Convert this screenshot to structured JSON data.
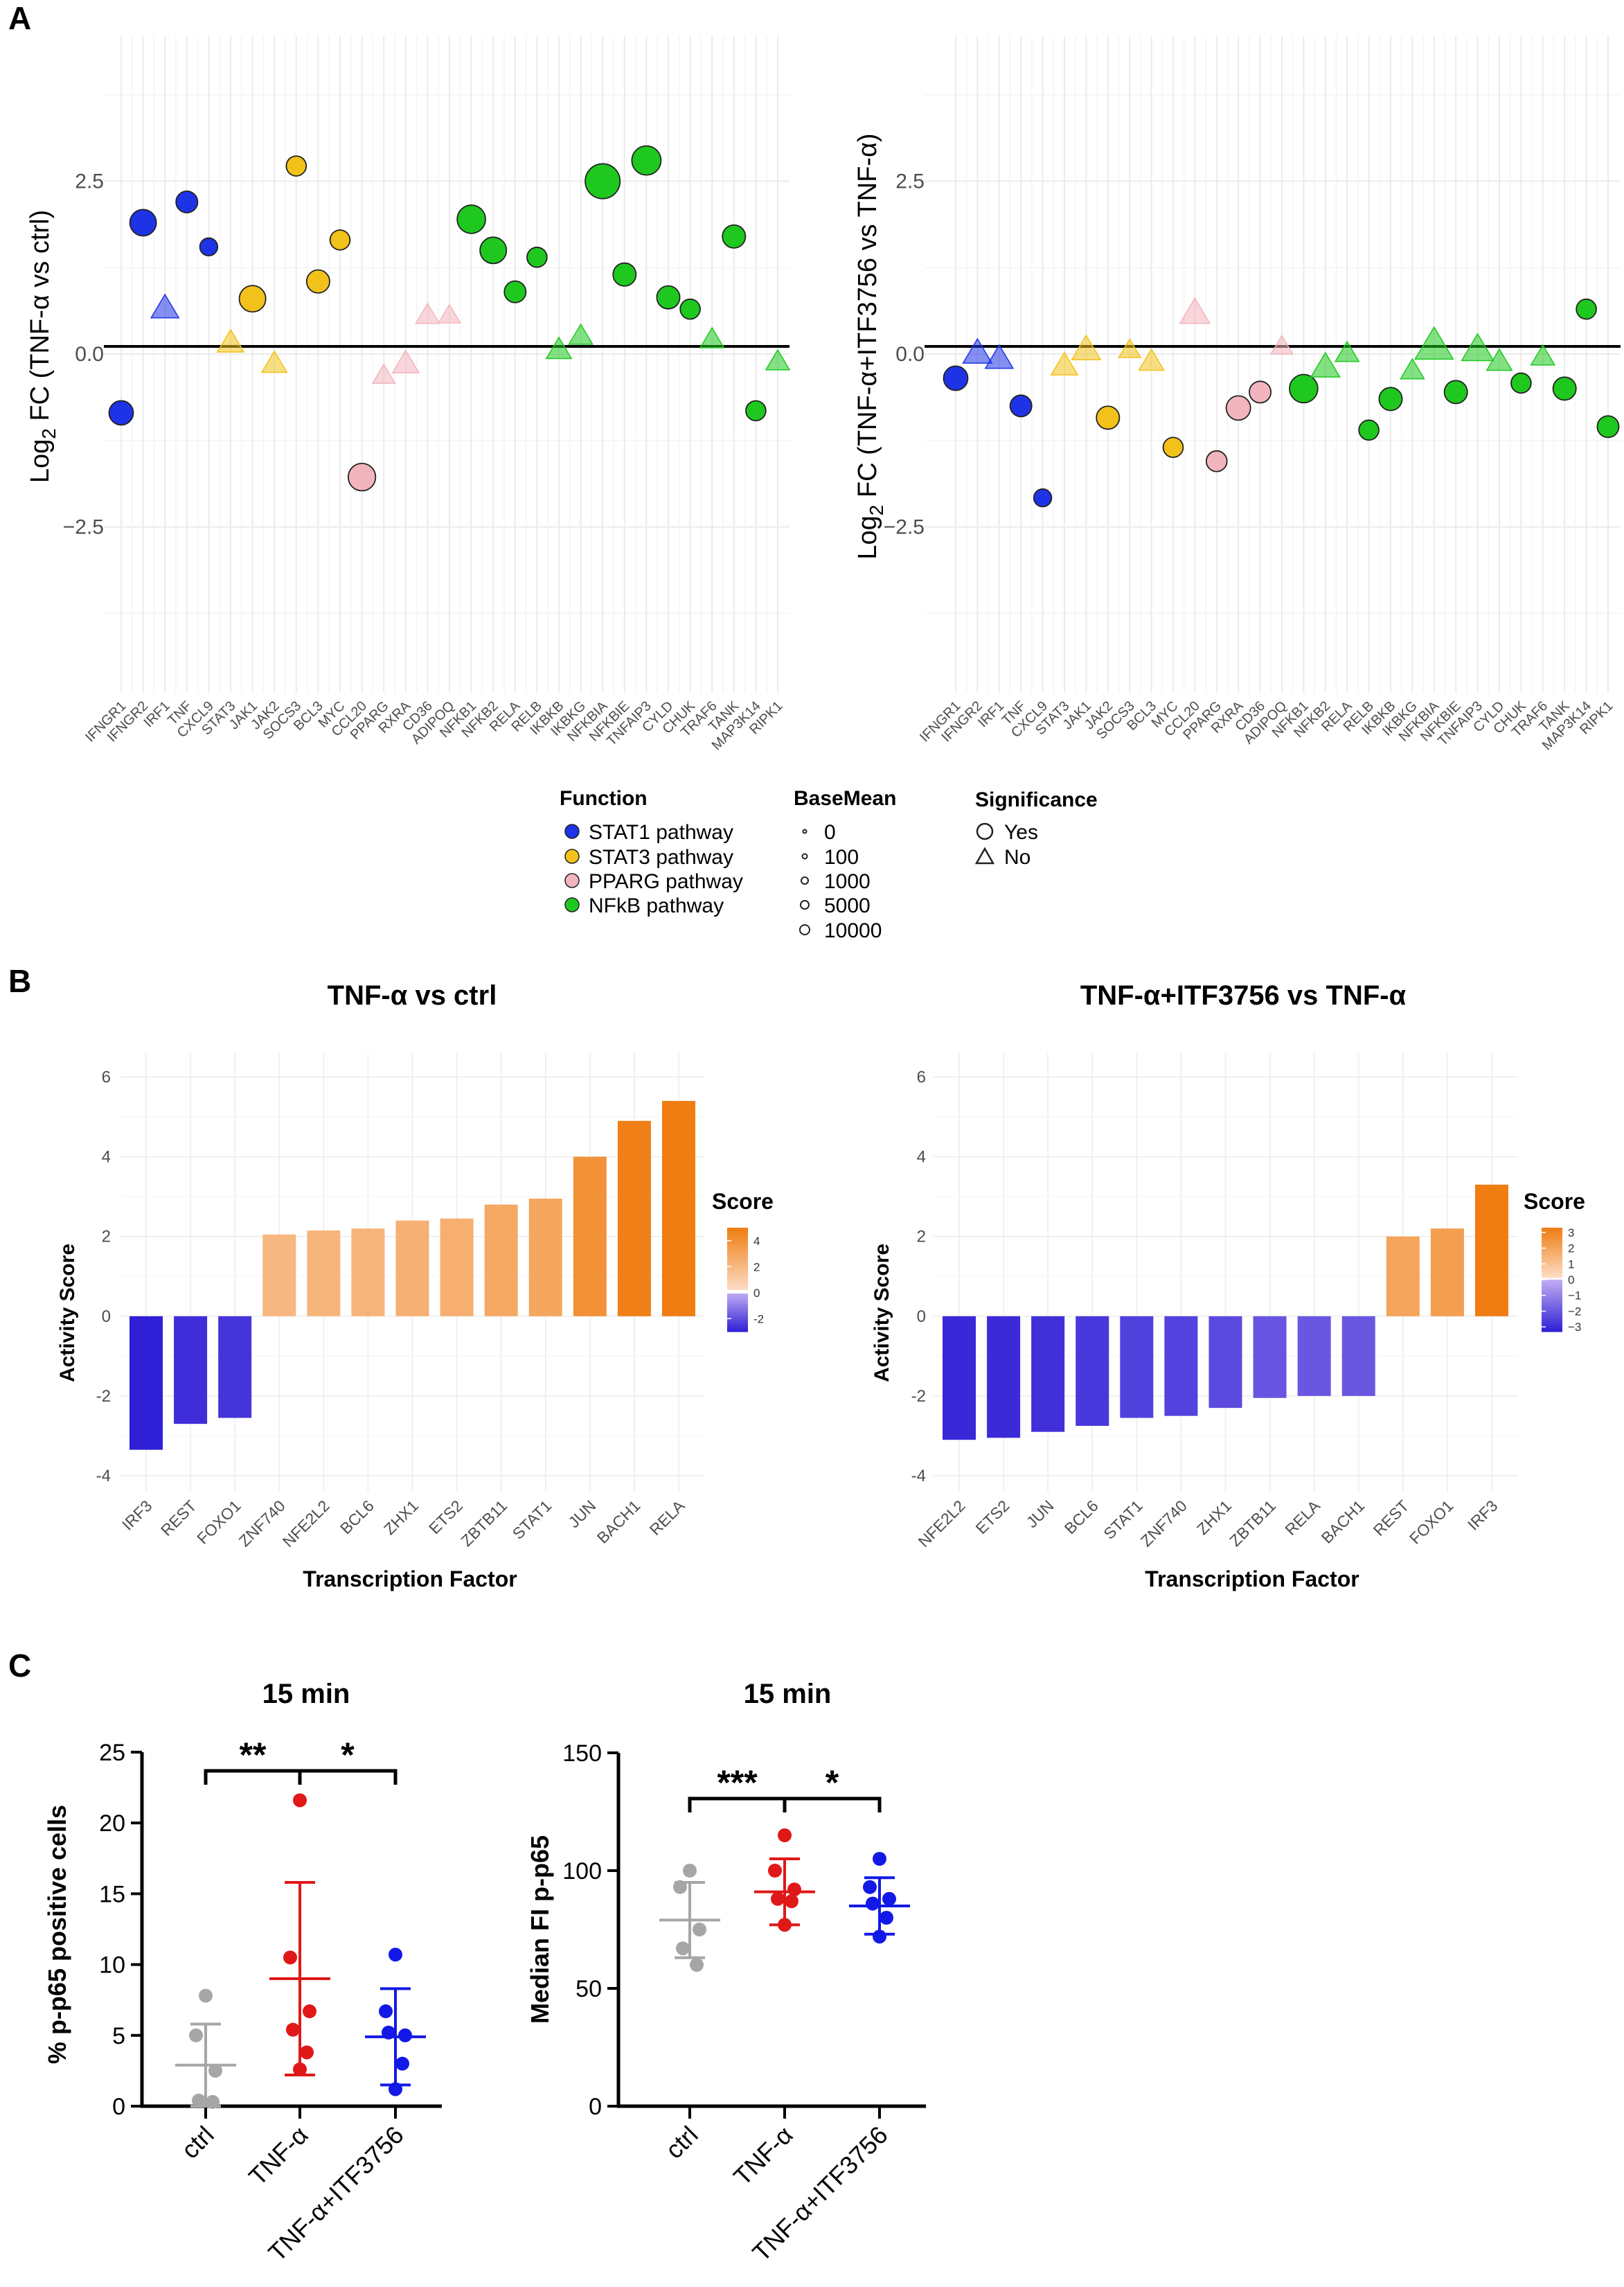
{
  "panel_labels": [
    "A",
    "B",
    "C"
  ],
  "colors": {
    "stat1": "#1f33e6",
    "stat3": "#f2c21b",
    "pparg": "#f2b5bd",
    "nfkb": "#1ec81e",
    "orange": "#ef7d12",
    "light_orange": "#fcc3a2",
    "purple": "#8c63e0",
    "blue_dark": "#3a23d6",
    "ctrl_grey": "#a6a6a6",
    "tnf_red": "#e01818",
    "itf_blue": "#1219e6"
  },
  "legend": {
    "function_title": "Function",
    "function_items": [
      {
        "label": "STAT1 pathway",
        "color": "#1f33e6"
      },
      {
        "label": "STAT3 pathway",
        "color": "#f2c21b"
      },
      {
        "label": "PPARG pathway",
        "color": "#f2b5bd"
      },
      {
        "label": "NFkB pathway",
        "color": "#1ec81e"
      }
    ],
    "basemean_title": "BaseMean",
    "basemean_items": [
      "0",
      "100",
      "1000",
      "5000",
      "10000"
    ],
    "significance_title": "Significance",
    "significance_items": [
      "Yes",
      "No"
    ]
  },
  "chart_data": [
    {
      "id": "A1",
      "type": "scatter",
      "ylabel_main": "Log",
      "ylabel_sub": "2",
      "ylabel_rest": " FC (TNF-α vs ctrl)",
      "ylim": [
        -4.9,
        4.6
      ],
      "yticks": [
        "2.5",
        "0.0",
        "−2.5"
      ],
      "ytick_values": [
        2.5,
        0,
        -2.5
      ],
      "categories": [
        "IFNGR1",
        "IFNGR2",
        "IRF1",
        "TNF",
        "CXCL9",
        "STAT3",
        "JAK1",
        "JAK2",
        "SOCS3",
        "BCL3",
        "MYC",
        "CCL20",
        "PPARG",
        "RXRA",
        "CD36",
        "ADIPOQ",
        "NFKB1",
        "NFKB2",
        "RELA",
        "RELB",
        "IKBKB",
        "IKBKG",
        "NFKBIA",
        "NFKBIE",
        "TNFAIP3",
        "CYLD",
        "CHUK",
        "TRAF6",
        "TANK",
        "MAP3K14",
        "RIPK1"
      ],
      "groups": [
        "stat1",
        "stat1",
        "stat1",
        "stat1",
        "stat1",
        "stat3",
        "stat3",
        "stat3",
        "stat3",
        "stat3",
        "stat3",
        "pparg",
        "pparg",
        "pparg",
        "pparg",
        "pparg",
        "nfkb",
        "nfkb",
        "nfkb",
        "nfkb",
        "nfkb",
        "nfkb",
        "nfkb",
        "nfkb",
        "nfkb",
        "nfkb",
        "nfkb",
        "nfkb",
        "nfkb",
        "nfkb",
        "nfkb"
      ],
      "values": [
        -0.85,
        1.9,
        0.65,
        2.2,
        1.55,
        0.15,
        0.8,
        -0.15,
        2.72,
        1.05,
        1.65,
        -1.78,
        -0.32,
        -0.15,
        0.55,
        0.55,
        1.95,
        1.5,
        0.9,
        1.4,
        0.05,
        0.25,
        2.5,
        1.15,
        2.8,
        0.82,
        0.65,
        0.2,
        1.7,
        -0.82,
        -0.12
      ],
      "significant": [
        true,
        true,
        false,
        true,
        true,
        false,
        true,
        false,
        true,
        true,
        true,
        true,
        false,
        false,
        false,
        false,
        true,
        true,
        true,
        true,
        false,
        false,
        true,
        true,
        true,
        true,
        true,
        false,
        true,
        true,
        false
      ],
      "basemean": [
        2500,
        3500,
        3000,
        1500,
        500,
        2500,
        3500,
        2000,
        1000,
        2000,
        1000,
        4000,
        1200,
        2500,
        1500,
        1000,
        4500,
        3500,
        1500,
        1000,
        2000,
        1500,
        9000,
        2000,
        5000,
        2000,
        1000,
        1500,
        2000,
        1000,
        1500
      ]
    },
    {
      "id": "A2",
      "type": "scatter",
      "ylabel_main": "Log",
      "ylabel_sub": "2",
      "ylabel_rest": " FC (TNF-α+ITF3756 vs TNF-α)",
      "ylim": [
        -4.9,
        4.6
      ],
      "yticks": [
        "2.5",
        "0.0",
        "−2.5"
      ],
      "ytick_values": [
        2.5,
        0,
        -2.5
      ],
      "categories": [
        "IFNGR1",
        "IFNGR2",
        "IRF1",
        "TNF",
        "CXCL9",
        "STAT3",
        "JAK1",
        "JAK2",
        "SOCS3",
        "BCL3",
        "MYC",
        "CCL20",
        "PPARG",
        "RXRA",
        "CD36",
        "ADIPOQ",
        "NFKB1",
        "NFKB2",
        "RELA",
        "RELB",
        "IKBKB",
        "IKBKG",
        "NFKBIA",
        "NFKBIE",
        "TNFAIP3",
        "CYLD",
        "CHUK",
        "TRAF6",
        "TANK",
        "MAP3K14",
        "RIPK1"
      ],
      "groups": [
        "stat1",
        "stat1",
        "stat1",
        "stat1",
        "stat1",
        "stat3",
        "stat3",
        "stat3",
        "stat3",
        "stat3",
        "stat3",
        "pparg",
        "pparg",
        "pparg",
        "pparg",
        "pparg",
        "nfkb",
        "nfkb",
        "nfkb",
        "nfkb",
        "nfkb",
        "nfkb",
        "nfkb",
        "nfkb",
        "nfkb",
        "nfkb",
        "nfkb",
        "nfkb",
        "nfkb",
        "nfkb",
        "nfkb"
      ],
      "values": [
        -0.35,
        0.0,
        -0.08,
        -0.75,
        -2.08,
        -0.18,
        0.05,
        -0.92,
        0.05,
        -0.12,
        -1.35,
        0.58,
        -1.55,
        -0.78,
        -0.55,
        0.1,
        -0.5,
        -0.2,
        0.0,
        -1.1,
        -0.65,
        -0.25,
        0.1,
        -0.55,
        0.05,
        -0.12,
        -0.42,
        -0.05,
        -0.5,
        0.65,
        -1.05
      ],
      "significant": [
        true,
        false,
        false,
        true,
        true,
        false,
        false,
        true,
        false,
        false,
        true,
        false,
        true,
        true,
        true,
        false,
        true,
        false,
        false,
        true,
        true,
        false,
        false,
        true,
        false,
        false,
        true,
        false,
        true,
        true,
        true
      ],
      "basemean": [
        2500,
        3500,
        3000,
        1500,
        500,
        2500,
        3500,
        2000,
        1000,
        2000,
        1000,
        4000,
        1200,
        2500,
        1500,
        1000,
        4500,
        3500,
        1500,
        1000,
        2000,
        1500,
        9000,
        2000,
        5000,
        2000,
        1000,
        1500,
        2000,
        1000,
        1500
      ]
    },
    {
      "id": "B1",
      "type": "bar",
      "title": "TNF-α vs ctrl",
      "xlabel": "Transcription Factor",
      "ylabel": "Activity Score",
      "ylim": [
        -4.4,
        6.6
      ],
      "yticks": [
        "6",
        "4",
        "2",
        "0",
        "-2",
        "-4"
      ],
      "ytick_values": [
        6,
        4,
        2,
        0,
        -2,
        -4
      ],
      "categories": [
        "IRF3",
        "REST",
        "FOXO1",
        "ZNF740",
        "NFE2L2",
        "BCL6",
        "ZHX1",
        "ETS2",
        "ZBTB11",
        "STAT1",
        "JUN",
        "BACH1",
        "RELA"
      ],
      "values": [
        -3.35,
        -2.7,
        -2.55,
        2.05,
        2.15,
        2.2,
        2.4,
        2.45,
        2.8,
        2.95,
        4.0,
        4.9,
        5.4
      ],
      "colorbar": {
        "title": "Score",
        "range": [
          -3,
          5
        ],
        "ticks": [
          "4",
          "2",
          "0",
          "-2"
        ],
        "tick_values": [
          4,
          2,
          0,
          -2
        ]
      }
    },
    {
      "id": "B2",
      "type": "bar",
      "title": "TNF-α+ITF3756 vs TNF-α",
      "xlabel": "Transcription Factor",
      "ylabel": "Activity Score",
      "ylim": [
        -4.4,
        6.6
      ],
      "yticks": [
        "6",
        "4",
        "2",
        "0",
        "-2",
        "-4"
      ],
      "ytick_values": [
        6,
        4,
        2,
        0,
        -2,
        -4
      ],
      "categories": [
        "NFE2L2",
        "ETS2",
        "JUN",
        "BCL6",
        "STAT1",
        "ZNF740",
        "ZHX1",
        "ZBTB11",
        "RELA",
        "BACH1",
        "REST",
        "FOXO1",
        "IRF3"
      ],
      "values": [
        -3.1,
        -3.05,
        -2.9,
        -2.75,
        -2.55,
        -2.5,
        -2.3,
        -2.05,
        -2.0,
        -2.0,
        2.0,
        2.2,
        3.3
      ],
      "colorbar": {
        "title": "Score",
        "range": [
          -3.3,
          3.3
        ],
        "ticks": [
          "3",
          "2",
          "1",
          "0",
          "−1",
          "−2",
          "−3"
        ],
        "tick_values": [
          3,
          2,
          1,
          0,
          -1,
          -2,
          -3
        ]
      }
    },
    {
      "id": "C1",
      "type": "scatter",
      "title": "15 min",
      "ylabel": "% p-p65 positive cells",
      "ylim": [
        0,
        25
      ],
      "yticks": [
        "25",
        "20",
        "15",
        "10",
        "5",
        "0"
      ],
      "ytick_values": [
        25,
        20,
        15,
        10,
        5,
        0
      ],
      "categories": [
        "ctrl",
        "TNF-α",
        "TNF-α+ITF3756"
      ],
      "point_colors": [
        "#a6a6a6",
        "#e01818",
        "#1219e6"
      ],
      "points": [
        [
          7.8,
          5.0,
          2.5,
          0.4,
          0.3
        ],
        [
          21.6,
          10.5,
          6.7,
          5.4,
          3.8,
          2.6
        ],
        [
          10.7,
          6.7,
          5.0,
          5.2,
          3.0,
          1.2
        ]
      ],
      "means": [
        2.9,
        9.0,
        4.9
      ],
      "sds": [
        2.9,
        6.8,
        3.4
      ],
      "significance": [
        {
          "from": 0,
          "to": 1,
          "label": "**"
        },
        {
          "from": 1,
          "to": 2,
          "label": "*"
        }
      ]
    },
    {
      "id": "C2",
      "type": "scatter",
      "title": "15 min",
      "ylabel": "Median FI p-p65",
      "ylim": [
        0,
        150
      ],
      "yticks": [
        "150",
        "100",
        "50",
        "0"
      ],
      "ytick_values": [
        150,
        100,
        50,
        0
      ],
      "categories": [
        "ctrl",
        "TNF-α",
        "TNF-α+ITF3756"
      ],
      "point_colors": [
        "#a6a6a6",
        "#e01818",
        "#1219e6"
      ],
      "points": [
        [
          100,
          93,
          75,
          67,
          60
        ],
        [
          115,
          100,
          92,
          88,
          87,
          77
        ],
        [
          105,
          93,
          88,
          86,
          80,
          72
        ]
      ],
      "means": [
        79,
        91,
        85
      ],
      "sds": [
        16,
        14,
        12
      ],
      "significance": [
        {
          "from": 0,
          "to": 1,
          "label": "***"
        },
        {
          "from": 1,
          "to": 2,
          "label": "*"
        }
      ]
    }
  ]
}
